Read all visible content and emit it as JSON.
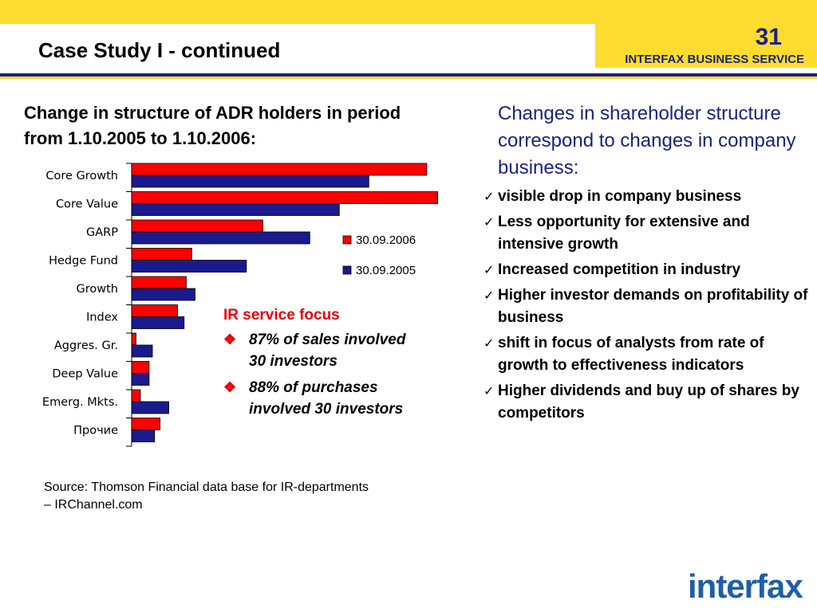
{
  "header": {
    "title": "Case Study I - continued",
    "page_number": "31",
    "brand_line": "INTERFAX BUSINESS SERVICE",
    "accent": "#fddc2f",
    "navy": "#1a237e"
  },
  "chart_title": "Change in structure of ADR holders in period from 1.10.2005 to 1.10.2006:",
  "chart_data": {
    "type": "bar",
    "orientation": "horizontal",
    "categories": [
      "Core Growth",
      "Core Value",
      "GARP",
      "Hedge Fund",
      "Growth",
      "Index",
      "Aggres. Gr.",
      "Deep Value",
      "Emerg. Mkts.",
      "Прочие"
    ],
    "series": [
      {
        "name": "30.09.2006",
        "color": "#ff0000",
        "values": [
          27,
          28,
          12,
          5.5,
          5,
          4.2,
          0.4,
          1.6,
          0.8,
          2.6
        ]
      },
      {
        "name": "30.09.2005",
        "color": "#1a1a8c",
        "values": [
          21.7,
          19,
          16.3,
          10.5,
          5.8,
          4.8,
          1.9,
          1.6,
          3.4,
          2.1
        ]
      }
    ],
    "legend_position": "right",
    "xlim": [
      0,
      30
    ],
    "grid": false
  },
  "ir_focus": {
    "title": "IR service focus",
    "items": [
      {
        "bullet": "❖",
        "text": "87% of sales involved 30 investors"
      },
      {
        "bullet": "❖",
        "text": "88% of purchases involved 30 investors"
      }
    ]
  },
  "source": "Source: Thomson Financial data base for IR-departments – IRChannel.com",
  "right": {
    "intro": "Changes in shareholder structure correspond to changes in company business:",
    "items": [
      {
        "check": "✓",
        "text": "visible drop in company business"
      },
      {
        "check": "✓",
        "text": "Less opportunity for extensive and intensive growth"
      },
      {
        "check": "✓",
        "text": "Increased competition in industry"
      },
      {
        "check": "✓",
        "text": "Higher investor demands on profitability of business"
      },
      {
        "check": "✓",
        "text": "shift in focus of analysts from rate of growth to effectiveness indicators"
      },
      {
        "check": "✓",
        "text": "Higher dividends and buy up of shares by competitors"
      }
    ]
  },
  "logo": {
    "part1": "inter",
    "part2": "fax"
  }
}
